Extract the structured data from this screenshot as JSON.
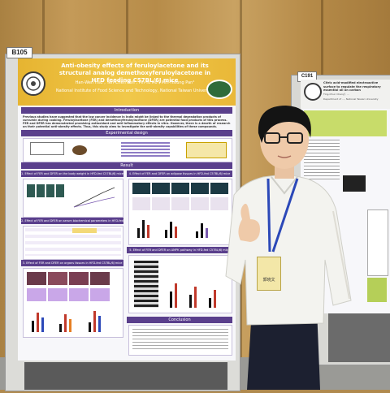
{
  "left_poster": {
    "board_label": "B105",
    "title": "Anti-obesity effects of feruloylacetone and its structural analog demethoxyferuloylacetone in HFD feeding C57BL/6J mice",
    "authors": "Han-Wen Hsu¹, Yen-Chen Koh¹, Pin-Yu Ho¹, Min-Hsiung Pan¹",
    "affiliation": "National Institute of Food Science and Technology, National Taiwan University",
    "sections": {
      "introduction": "Introduction",
      "experimental": "Experimental design",
      "result": "Result",
      "conclusion": "Conclusion"
    },
    "intro_text": "Previous studies have suggested that the low cancer incidence in India might be linked to the thermal degradation products of curcumin during cooking. Feruloylacetone (FER) and demethoxyferuloylacetone (DFER) are potential food products of this process. FER and DFER has demonstrated promising antioxidant and anti-inflammatory effects in vitro. However, there is a dearth of research on their potential anti-obesity effects. Thus, this study aims to investigate the anti-obesity capabilities of these compounds.",
    "result_headers": [
      "1. Effect of FER and DFER on the body weight in HFD-fed C57BL/6J mice",
      "4. Effect of FER and DFER on adipose tissues in HFD-fed C57BL/6J mice",
      "2. Effect of FER and DFER on serum biochemical parameters in HFD-fed C57BL/6J mice",
      "5. Effect of FER and DFER on AMPK pathway in HFD-fed C57BL/6J mice",
      "3. Effect of FER and DFER on organs tissues in HFD-fed C57BL/6J mice"
    ]
  },
  "right_poster": {
    "board_label": "C191",
    "title": "Citric acid-modified electroactive surface to regulate the respiratory essential oil on carbon",
    "authors": "Ting-Chun Cheng¹, ...",
    "affiliation": "Department of ..., National Taiwan University"
  },
  "name_badge": "郭晓文",
  "colors": {
    "poster_header": "#e6b431",
    "section_purple": "#5a3f8c",
    "shirt": "#f4f4f0",
    "lanyard": "#2b48b8",
    "wall": "#b8904c"
  }
}
